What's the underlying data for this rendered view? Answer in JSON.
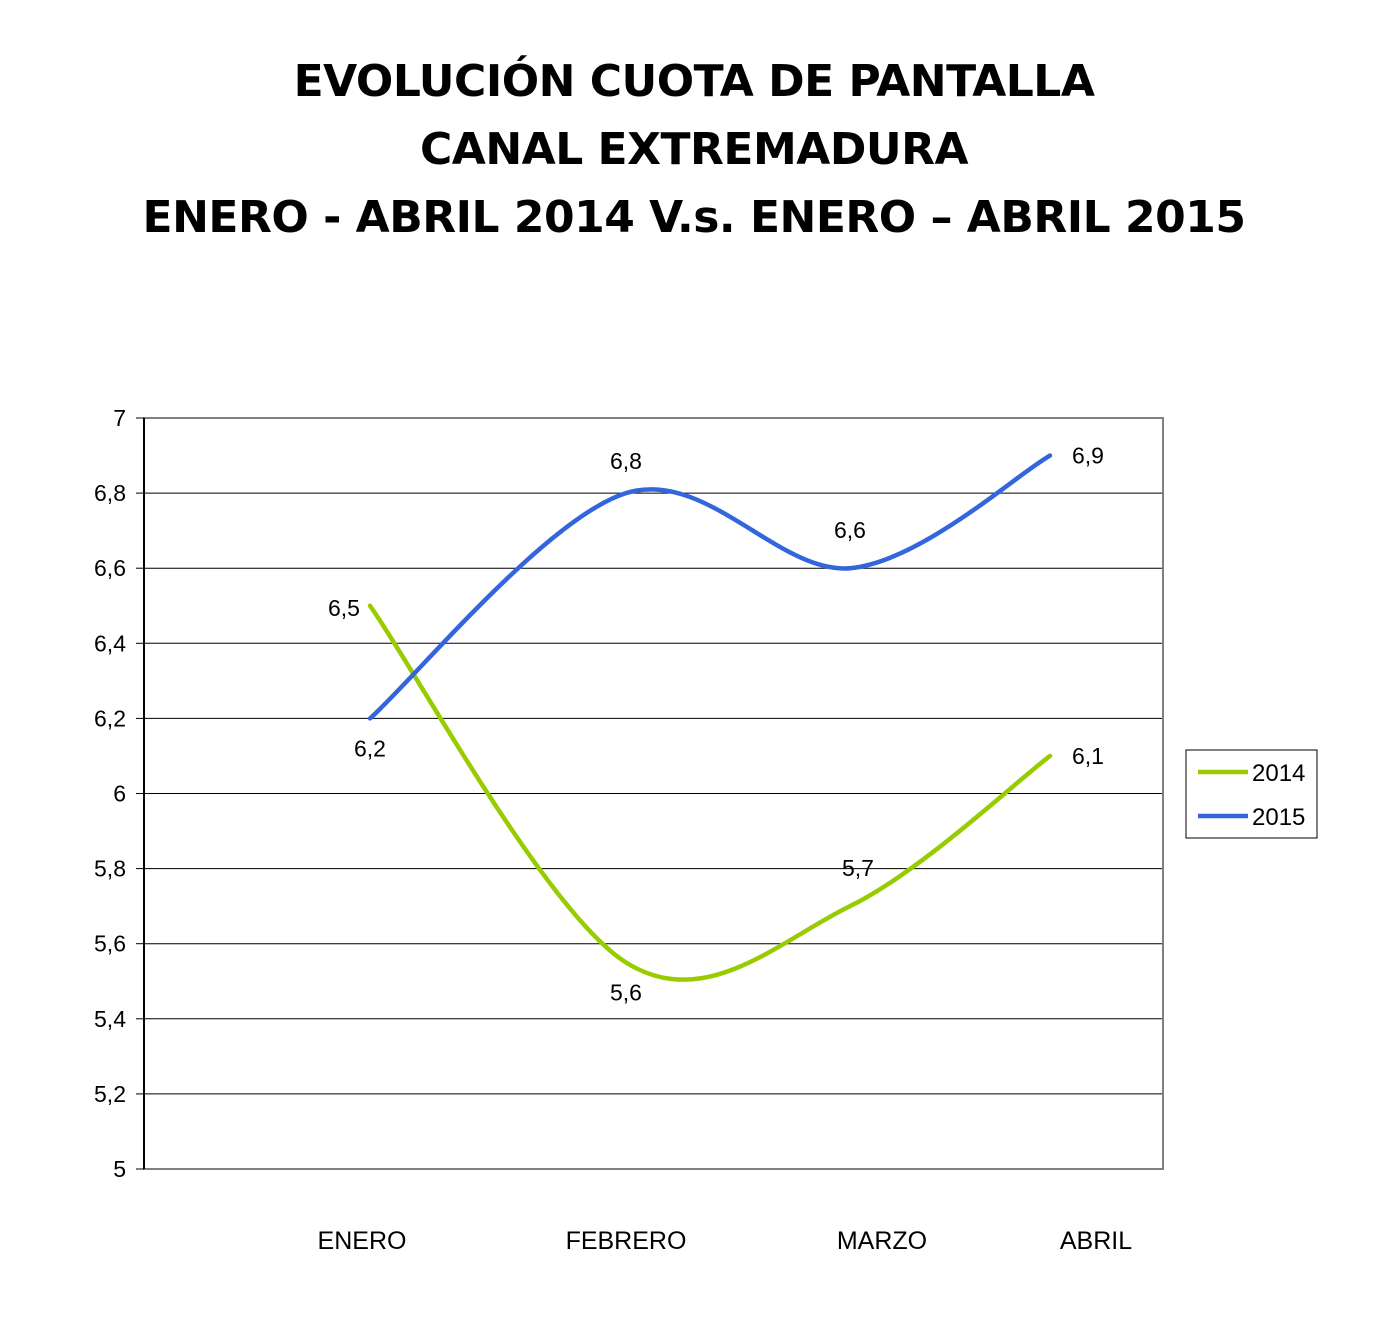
{
  "title": {
    "line1": "EVOLUCIÓN CUOTA DE PANTALLA",
    "line2": "CANAL EXTREMADURA",
    "line3": "ENERO - ABRIL 2014 V.s. ENERO – ABRIL 2015"
  },
  "chart_data": {
    "type": "line",
    "categories": [
      "ENERO",
      "FEBRERO",
      "MARZO",
      "ABRIL"
    ],
    "ylim": [
      5,
      7
    ],
    "ytick_values": [
      5,
      5.2,
      5.4,
      5.6,
      5.8,
      6,
      6.2,
      6.4,
      6.6,
      6.8,
      7
    ],
    "ytick_labels": [
      "5",
      "5,2",
      "5,4",
      "5,6",
      "5,8",
      "6",
      "6,2",
      "6,4",
      "6,6",
      "6,8",
      "7"
    ],
    "grid": true,
    "legend_position": "right",
    "series": [
      {
        "name": "2014",
        "color": "#99cc00",
        "values": [
          6.5,
          5.55,
          5.7,
          6.1
        ],
        "data_labels": [
          "6,5",
          "5,6",
          "5,7",
          "6,1"
        ]
      },
      {
        "name": "2015",
        "color": "#3366dd",
        "values": [
          6.2,
          6.8,
          6.6,
          6.9
        ],
        "data_labels": [
          "6,2",
          "6,8",
          "6,6",
          "6,9"
        ]
      }
    ]
  }
}
